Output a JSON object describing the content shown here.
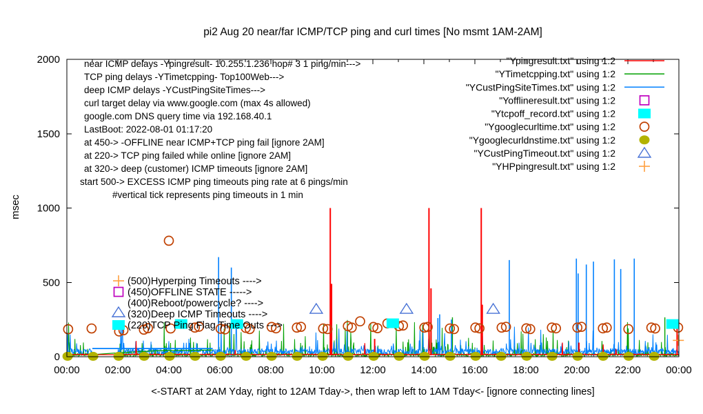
{
  "title": "pi2 Aug 20  near/far ICMP/TCP ping and curl times [No msmt 1AM-2AM]",
  "axes": {
    "ylabel": "msec",
    "xlabel": "<-START at 2AM Yday, right to 12AM Tday->, then wrap left to 1AM Tday<- [ignore connecting lines]",
    "y_ticks": [
      "0",
      "500",
      "1000",
      "1500",
      "2000"
    ],
    "y_tick_values": [
      0,
      500,
      1000,
      1500,
      2000
    ],
    "x_tick_labels": [
      "00:00",
      "02:00",
      "04:00",
      "06:00",
      "08:00",
      "10:00",
      "12:00",
      "14:00",
      "16:00",
      "18:00",
      "20:00",
      "22:00",
      "00:00"
    ],
    "ylim": [
      0,
      2000
    ],
    "xlim_hours": [
      0,
      24
    ]
  },
  "info_lines": [
    "near ICMP delays -Ypingresult- 10.255.1.236 hop# 3 1 ping/min--->",
    "TCP ping delays -YTimetcpping- Top100Web--->",
    "deep ICMP delays -YCustPingSiteTimes--->",
    "curl target delay via www.google.com (max 4s allowed)",
    "google.com DNS query time via 192.168.40.1",
    "LastBoot: 2022-08-01 01:17:20",
    "at 450-> -OFFLINE near ICMP+TCP ping fail [ignore 2AM]",
    "at 220-> TCP ping failed while online [ignore 2AM]",
    "at 320-> deep (customer) ICMP timeouts [ignore 2AM]",
    "start 500-> EXCESS ICMP ping timeouts ping rate at 6 pings/min",
    "#vertical tick represents ping timeouts in 1 min"
  ],
  "level_labels": [
    {
      "text": "(500)Hyperping Timeouts ---->",
      "level": 500,
      "marker": "plus",
      "color": "orange"
    },
    {
      "text": "(450)OFFLINE STATE ----->",
      "level": 450,
      "marker": "open-square",
      "color": "magenta"
    },
    {
      "text": "(400)Reboot/powercycle? ---->",
      "level": 400,
      "marker": "none",
      "color": ""
    },
    {
      "text": "(320)Deep ICMP Timeouts ---->",
      "level": 320,
      "marker": "open-triangle",
      "color": "triangle_blue"
    },
    {
      "text": "(220)TCP Ping Flag Time Outs --->",
      "level": 220,
      "marker": "filled-square",
      "color": "cyan"
    }
  ],
  "legend": {
    "entries": [
      {
        "label": "\"Ypingresult.txt\" using 1:2",
        "style": "line",
        "color": "red"
      },
      {
        "label": "\"YTimetcpping.txt\" using 1:2",
        "style": "line",
        "color": "green"
      },
      {
        "label": "\"YCustPingSiteTimes.txt\" using 1:2",
        "style": "line",
        "color": "blue"
      },
      {
        "label": "\"Yofflineresult.txt\" using 1:2",
        "style": "open-square",
        "color": "magenta"
      },
      {
        "label": "\"Ytcpoff_record.txt\" using 1:2",
        "style": "filled-square",
        "color": "cyan"
      },
      {
        "label": "\"Ygooglecurltime.txt\" using 1:2",
        "style": "open-circle",
        "color": "dark_orange"
      },
      {
        "label": "\"Ygooglecurldnstime.txt\" using 1:2",
        "style": "filled-circle",
        "color": "olive"
      },
      {
        "label": "\"YCustPingTimeout.txt\" using 1:2",
        "style": "open-triangle",
        "color": "triangle_blue"
      },
      {
        "label": "\"YHPpingresult.txt\" using 1:2",
        "style": "plus",
        "color": "orange"
      }
    ]
  },
  "colors": {
    "red": "#ff0000",
    "green": "#00a000",
    "blue": "#0080ff",
    "magenta": "#bf00bf",
    "cyan": "#00ffff",
    "dark_orange": "#c04000",
    "olive": "#b3b300",
    "triangle_blue": "#4671d5",
    "orange": "#ffa040",
    "text": "#000000",
    "background": "#ffffff"
  },
  "chart_data": {
    "type": "line",
    "x_unit": "hours_of_day",
    "xlabel": "<-START at 2AM Yday, right to 12AM Tday->, then wrap left to 1AM Tday<- [ignore connecting lines]",
    "ylabel": "msec",
    "ylim": [
      0,
      2000
    ],
    "xlim": [
      0,
      24
    ],
    "no_measurement_window_hours": [
      1,
      2
    ],
    "baseline": {
      "description": "dense per-minute ping noise 0-250 msec for green/blue; red near-ICMP line flat ~12-18 msec",
      "seed": 42
    },
    "red_spikes": [
      [
        10.33,
        1000
      ],
      [
        10.38,
        490
      ],
      [
        14.2,
        1000
      ],
      [
        14.28,
        460
      ],
      [
        16.25,
        1000
      ],
      [
        16.29,
        350
      ],
      [
        12.07,
        120
      ],
      [
        20.08,
        95
      ],
      [
        23.93,
        200
      ]
    ],
    "blue_spikes": [
      [
        5.95,
        670
      ],
      [
        6.45,
        600
      ],
      [
        14.55,
        260
      ],
      [
        14.62,
        285
      ],
      [
        15.08,
        250
      ],
      [
        17.35,
        650
      ],
      [
        19.98,
        660
      ],
      [
        20.05,
        560
      ],
      [
        20.37,
        620
      ],
      [
        20.65,
        640
      ],
      [
        21.47,
        655
      ],
      [
        21.72,
        590
      ],
      [
        22.25,
        660
      ]
    ],
    "green_spikes": [
      [
        15.12,
        265
      ],
      [
        23.45,
        265
      ]
    ],
    "blue_connector": [
      [
        1.0,
        55
      ],
      [
        5.72,
        55
      ]
    ],
    "green_connector": [
      [
        1.0,
        14
      ],
      [
        2.0,
        26
      ],
      [
        3.5,
        40
      ],
      [
        5.72,
        45
      ]
    ],
    "triangles_320": [
      [
        9.78,
        320
      ],
      [
        13.32,
        320
      ],
      [
        16.72,
        320
      ]
    ],
    "cyan_squares_220": [
      [
        4.48,
        220
      ],
      [
        6.67,
        220
      ],
      [
        12.78,
        225
      ],
      [
        23.75,
        220
      ]
    ],
    "plus_points": [
      [
        23.98,
        110
      ]
    ],
    "curl_circles": [
      [
        0.05,
        185
      ],
      [
        0.97,
        190
      ],
      [
        2.05,
        170
      ],
      [
        2.22,
        178
      ],
      [
        3.02,
        182
      ],
      [
        3.18,
        192
      ],
      [
        4.0,
        780
      ],
      [
        4.07,
        190
      ],
      [
        5.02,
        196
      ],
      [
        5.18,
        202
      ],
      [
        6.03,
        188
      ],
      [
        6.2,
        184
      ],
      [
        7.02,
        194
      ],
      [
        7.17,
        186
      ],
      [
        8.03,
        200
      ],
      [
        8.2,
        191
      ],
      [
        9.02,
        196
      ],
      [
        9.18,
        201
      ],
      [
        10.05,
        190
      ],
      [
        10.22,
        186
      ],
      [
        11.02,
        206
      ],
      [
        11.17,
        196
      ],
      [
        11.5,
        238
      ],
      [
        12.02,
        200
      ],
      [
        12.18,
        192
      ],
      [
        12.57,
        224
      ],
      [
        13.02,
        206
      ],
      [
        13.18,
        210
      ],
      [
        14.02,
        196
      ],
      [
        14.15,
        200
      ],
      [
        15.02,
        190
      ],
      [
        15.18,
        186
      ],
      [
        16.02,
        196
      ],
      [
        16.18,
        191
      ],
      [
        17.05,
        196
      ],
      [
        17.22,
        201
      ],
      [
        18.02,
        191
      ],
      [
        18.17,
        186
      ],
      [
        19.02,
        196
      ],
      [
        19.18,
        191
      ],
      [
        20.02,
        196
      ],
      [
        20.18,
        201
      ],
      [
        21.02,
        191
      ],
      [
        21.17,
        196
      ],
      [
        22.02,
        186
      ],
      [
        22.92,
        196
      ],
      [
        23.07,
        190
      ],
      [
        23.97,
        196
      ]
    ],
    "dns_dots": [
      [
        0.03,
        3
      ],
      [
        1.03,
        3
      ],
      [
        2.03,
        3
      ],
      [
        3.03,
        3
      ],
      [
        4.03,
        3
      ],
      [
        5.03,
        3
      ],
      [
        6.03,
        3
      ],
      [
        7.03,
        3
      ],
      [
        8.03,
        3
      ],
      [
        9.03,
        3
      ],
      [
        10.03,
        3
      ],
      [
        11.03,
        3
      ],
      [
        12.03,
        3
      ],
      [
        13.03,
        3
      ],
      [
        14.03,
        3
      ],
      [
        15.03,
        3
      ],
      [
        16.03,
        3
      ],
      [
        17.03,
        3
      ],
      [
        18.03,
        3
      ],
      [
        19.03,
        3
      ],
      [
        20.03,
        3
      ],
      [
        21.03,
        3
      ],
      [
        22.03,
        3
      ],
      [
        23.03,
        3
      ]
    ]
  }
}
